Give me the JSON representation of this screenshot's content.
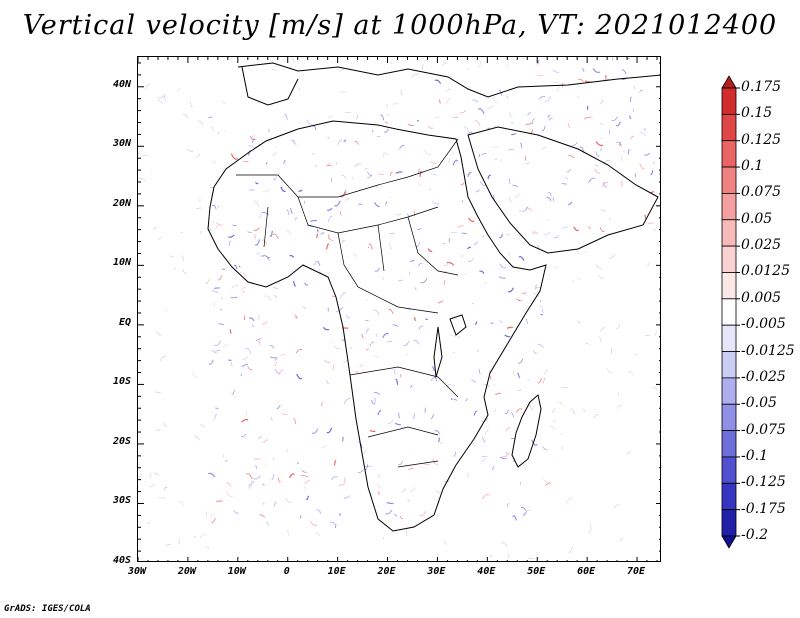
{
  "title": "Vertical velocity [m/s] at 1000hPa, VT: 2021012400",
  "footer": "GrADS: IGES/COLA",
  "map": {
    "lon_range": [
      -30,
      75
    ],
    "lat_range": [
      -40,
      45
    ],
    "lat_labels": [
      "40N",
      "30N",
      "20N",
      "10N",
      "EQ",
      "10S",
      "20S",
      "30S",
      "40S"
    ],
    "lon_labels": [
      "30W",
      "20W",
      "10W",
      "0",
      "10E",
      "20E",
      "30E",
      "40E",
      "50E",
      "60E",
      "70E"
    ]
  },
  "colorbar": {
    "labels": [
      "0.175",
      "0.15",
      "0.125",
      "0.1",
      "0.075",
      "0.05",
      "0.025",
      "0.0125",
      "0.005",
      "-0.005",
      "-0.0125",
      "-0.025",
      "-0.05",
      "-0.075",
      "-0.1",
      "-0.125",
      "-0.175",
      "-0.2"
    ],
    "colors": [
      "#b41e1e",
      "#d22d2d",
      "#e14646",
      "#eb6464",
      "#f08282",
      "#f5a0a0",
      "#f8b9b9",
      "#fbd2d2",
      "#fde8e8",
      "#ffffff",
      "#e6e6fb",
      "#cccdf5",
      "#aeaeee",
      "#9090e6",
      "#6f6fdc",
      "#5050d0",
      "#3535c0",
      "#2020a8",
      "#101090"
    ]
  }
}
